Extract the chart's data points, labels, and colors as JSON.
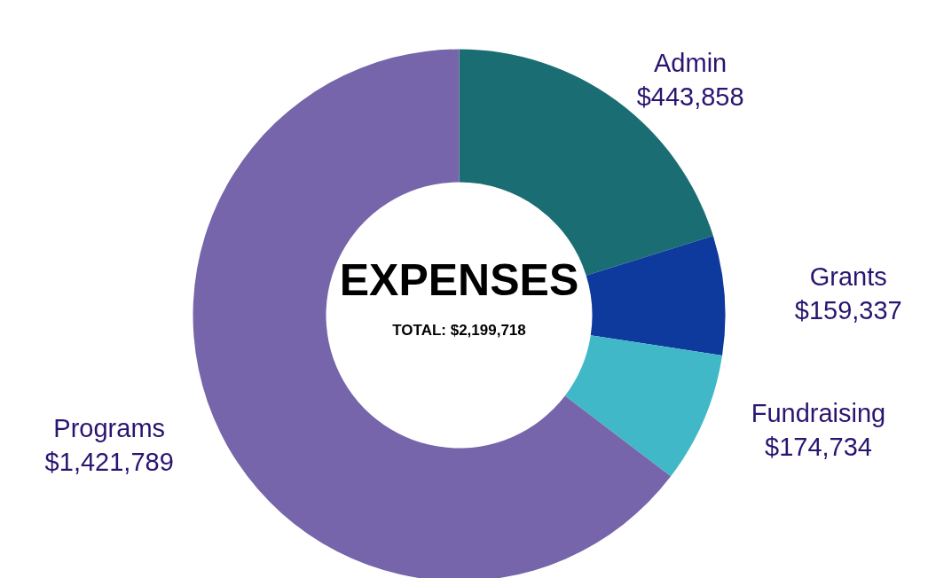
{
  "chart_data": {
    "type": "donut",
    "title": "EXPENSES",
    "subtitle": "TOTAL: $2,199,718",
    "categories": [
      "Admin",
      "Grants",
      "Fundraising",
      "Programs"
    ],
    "values": [
      443858,
      159337,
      174734,
      1421789
    ],
    "colors": [
      "#1a6e73",
      "#0e3a9e",
      "#41b8c8",
      "#7665aa"
    ],
    "value_labels": [
      "$443,858",
      "$159,337",
      "$174,734",
      "$1,421,789"
    ]
  }
}
